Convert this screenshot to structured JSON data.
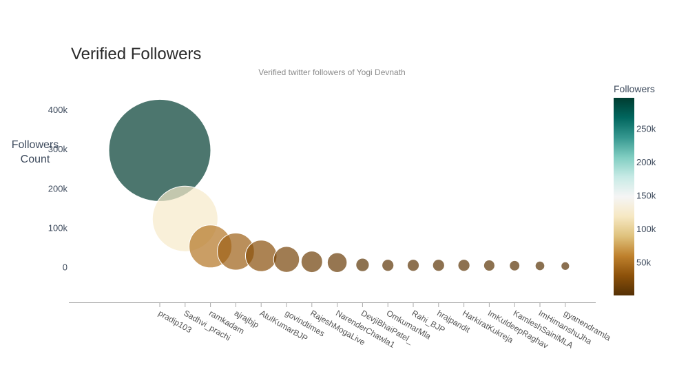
{
  "chart_data": {
    "type": "scatter",
    "variant": "bubble",
    "title": "Verified Followers",
    "subtitle": "Verified twitter followers of Yogi Devnath",
    "ylabel": "Followers\nCount",
    "xlabel": "",
    "ylim": [
      -90000,
      430000
    ],
    "yticks": [
      0,
      100000,
      200000,
      300000,
      400000
    ],
    "ytick_labels": [
      "0",
      "100k",
      "200k",
      "300k",
      "400k"
    ],
    "categories": [
      "pradip103",
      "Sadhvi_prachi",
      "ramkadam",
      "ajrajbjp",
      "AtulKumarBJP",
      "govindtimes",
      "RajeshMogaLive",
      "NarenderChawla1",
      "DevjiBhaiPatel_",
      "OmkumarMla",
      "Rahi_BJP",
      "hrajpandit",
      "HarkiratKukreja",
      "ImKuldeepRaghav",
      "KamleshSainiMLA",
      "ImHimanshuJha",
      "gyanendramla"
    ],
    "values": [
      296000,
      122000,
      52000,
      39000,
      28000,
      19000,
      13000,
      11000,
      5000,
      4000,
      4000,
      4000,
      4000,
      3500,
      3000,
      2500,
      2000
    ],
    "grid": false,
    "showlegend": false,
    "bubble_opacity": 0.7,
    "colorbar": {
      "title": "Followers",
      "range": [
        0,
        296000
      ],
      "ticks": [
        50000,
        100000,
        150000,
        200000,
        250000
      ],
      "tick_labels": [
        "50k",
        "100k",
        "150k",
        "200k",
        "250k"
      ],
      "colorscale": [
        "#543005",
        "#8c510a",
        "#bf812d",
        "#dfc27d",
        "#f6e8c3",
        "#f5f5f5",
        "#c7eae5",
        "#80cdc1",
        "#35978f",
        "#01665e",
        "#003c30"
      ]
    }
  }
}
